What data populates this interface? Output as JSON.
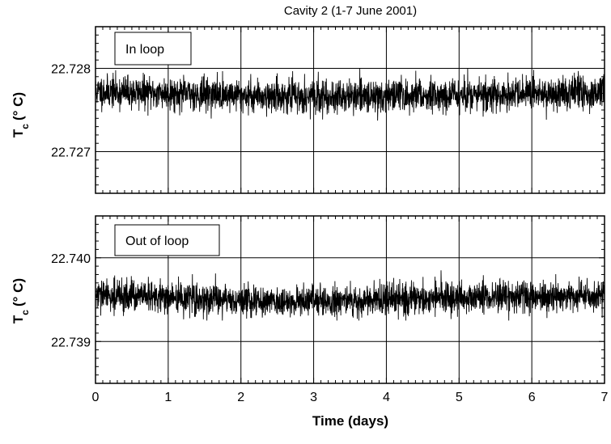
{
  "figure": {
    "title": "Cavity 2 (1-7 June 2001)",
    "xlabel": "Time (days)"
  },
  "chart_data": [
    {
      "type": "line",
      "title": "Cavity 2 (1-7 June 2001)",
      "annotation": "In loop",
      "xlabel": "",
      "ylabel": "Tc (° C)",
      "xlim": [
        0,
        7
      ],
      "ylim": [
        22.7265,
        22.7285
      ],
      "xticks": [
        0,
        1,
        2,
        3,
        4,
        5,
        6,
        7
      ],
      "xtick_labels_shown": false,
      "yticks": [
        22.727,
        22.728
      ],
      "ytick_labels": [
        "22.727",
        "22.728"
      ],
      "grid": true,
      "series": [
        {
          "trace": "dense noisy time series",
          "mean": 22.7277,
          "noise_range": [
            22.72737,
            22.728
          ],
          "x": [
            0,
            0.5,
            1,
            1.5,
            2,
            2.5,
            3,
            3.5,
            4,
            4.5,
            5,
            5.5,
            6,
            6.5,
            7
          ],
          "values": [
            22.72772,
            22.72771,
            22.7277,
            22.72769,
            22.72768,
            22.72767,
            22.72766,
            22.72766,
            22.72767,
            22.72768,
            22.72768,
            22.72768,
            22.72769,
            22.7277,
            22.72771
          ]
        }
      ]
    },
    {
      "type": "line",
      "annotation": "Out of loop",
      "xlabel": "Time (days)",
      "ylabel": "Tc (° C)",
      "xlim": [
        0,
        7
      ],
      "ylim": [
        22.7385,
        22.7405
      ],
      "xticks": [
        0,
        1,
        2,
        3,
        4,
        5,
        6,
        7
      ],
      "xtick_labels": [
        "0",
        "1",
        "2",
        "3",
        "4",
        "5",
        "6",
        "7"
      ],
      "yticks": [
        22.739,
        22.74
      ],
      "ytick_labels": [
        "22.739",
        "22.740"
      ],
      "grid": true,
      "series": [
        {
          "trace": "dense noisy time series",
          "mean": 22.73952,
          "noise_range": [
            22.73925,
            22.73985
          ],
          "x": [
            0,
            0.5,
            1,
            1.5,
            2,
            2.5,
            3,
            3.5,
            4,
            4.5,
            5,
            5.5,
            6,
            6.5,
            7
          ],
          "values": [
            22.73955,
            22.73954,
            22.73952,
            22.7395,
            22.73949,
            22.73948,
            22.73948,
            22.73949,
            22.7395,
            22.73951,
            22.73952,
            22.73953,
            22.73953,
            22.73954,
            22.73955
          ]
        }
      ]
    }
  ]
}
